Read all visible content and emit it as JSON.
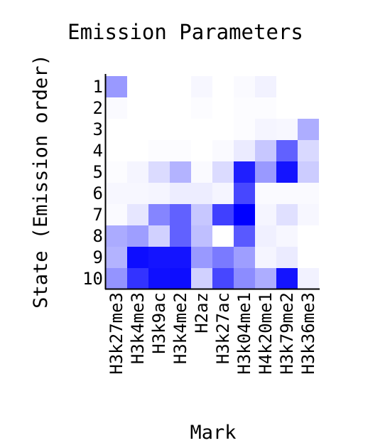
{
  "chart_data": {
    "type": "heatmap",
    "title": "Emission Parameters",
    "xlabel": "Mark",
    "ylabel": "State (Emission order)",
    "x_categories": [
      "H3k27me3",
      "H3k4me3",
      "H3k9ac",
      "H3k4me2",
      "H2az",
      "H3k27ac",
      "H3k04me1",
      "H4k20me1",
      "H3k79me2",
      "H3k36me3"
    ],
    "y_categories": [
      "1",
      "2",
      "3",
      "4",
      "5",
      "6",
      "7",
      "8",
      "9",
      "10"
    ],
    "value_range": [
      0,
      1
    ],
    "colors": {
      "low": "#ffffff",
      "high": "#0000ff",
      "axis": "#000000"
    },
    "values": [
      [
        0.4,
        0.0,
        0.0,
        0.0,
        0.03,
        0.0,
        0.02,
        0.05,
        0.0,
        0.0
      ],
      [
        0.02,
        0.0,
        0.0,
        0.0,
        0.01,
        0.0,
        0.01,
        0.01,
        0.0,
        0.0
      ],
      [
        0.0,
        0.0,
        0.0,
        0.0,
        0.0,
        0.0,
        0.01,
        0.04,
        0.03,
        0.32
      ],
      [
        0.0,
        0.0,
        0.01,
        0.01,
        0.0,
        0.02,
        0.08,
        0.22,
        0.62,
        0.15
      ],
      [
        0.01,
        0.04,
        0.14,
        0.3,
        0.02,
        0.14,
        0.88,
        0.4,
        0.92,
        0.2
      ],
      [
        0.03,
        0.03,
        0.04,
        0.07,
        0.07,
        0.04,
        0.72,
        0.02,
        0.02,
        0.02
      ],
      [
        0.02,
        0.1,
        0.48,
        0.62,
        0.22,
        0.75,
        1.0,
        0.04,
        0.12,
        0.03
      ],
      [
        0.33,
        0.38,
        0.18,
        0.62,
        0.25,
        0.0,
        0.65,
        0.06,
        0.03,
        0.0
      ],
      [
        0.3,
        0.95,
        0.92,
        0.92,
        0.4,
        0.52,
        0.38,
        0.04,
        0.08,
        0.0
      ],
      [
        0.42,
        0.8,
        0.94,
        0.95,
        0.18,
        0.72,
        0.45,
        0.32,
        0.92,
        0.05
      ]
    ]
  }
}
